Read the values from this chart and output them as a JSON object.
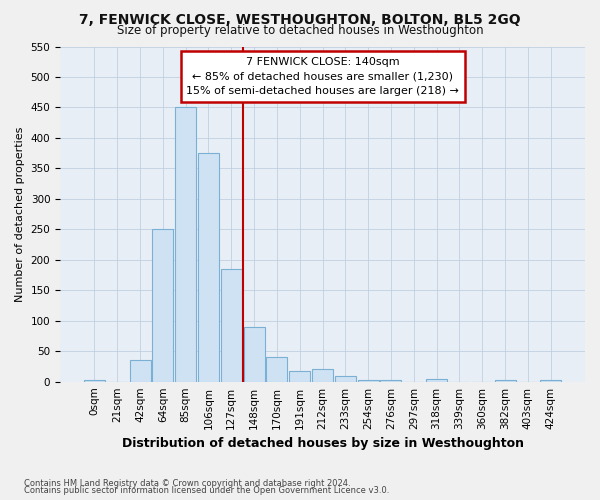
{
  "title": "7, FENWICK CLOSE, WESTHOUGHTON, BOLTON, BL5 2GQ",
  "subtitle": "Size of property relative to detached houses in Westhoughton",
  "xlabel": "Distribution of detached houses by size in Westhoughton",
  "ylabel": "Number of detached properties",
  "footnote1": "Contains HM Land Registry data © Crown copyright and database right 2024.",
  "footnote2": "Contains public sector information licensed under the Open Government Licence v3.0.",
  "bar_labels": [
    "0sqm",
    "21sqm",
    "42sqm",
    "64sqm",
    "85sqm",
    "106sqm",
    "127sqm",
    "148sqm",
    "170sqm",
    "191sqm",
    "212sqm",
    "233sqm",
    "254sqm",
    "276sqm",
    "297sqm",
    "318sqm",
    "339sqm",
    "360sqm",
    "382sqm",
    "403sqm",
    "424sqm"
  ],
  "bar_values": [
    3,
    0,
    35,
    250,
    450,
    375,
    185,
    90,
    40,
    18,
    20,
    10,
    2,
    2,
    0,
    5,
    0,
    0,
    2,
    0,
    2
  ],
  "bar_color": "#cfe2f3",
  "bar_edge_color": "#7ab0d4",
  "vline_color": "#c00000",
  "vline_x": 6.5,
  "annotation_title": "7 FENWICK CLOSE: 140sqm",
  "annotation_line1": "← 85% of detached houses are smaller (1,230)",
  "annotation_line2": "15% of semi-detached houses are larger (218) →",
  "annotation_box_edgecolor": "#c00000",
  "annotation_fill": "white",
  "ylim": [
    0,
    550
  ],
  "yticks": [
    0,
    50,
    100,
    150,
    200,
    250,
    300,
    350,
    400,
    450,
    500,
    550
  ],
  "fig_bg": "#f0f0f0",
  "plot_bg": "#e8eef5",
  "grid_color": "#c0cfe0",
  "title_fontsize": 10,
  "subtitle_fontsize": 8.5,
  "xlabel_fontsize": 9,
  "ylabel_fontsize": 8,
  "tick_fontsize": 7.5,
  "footnote_fontsize": 6
}
